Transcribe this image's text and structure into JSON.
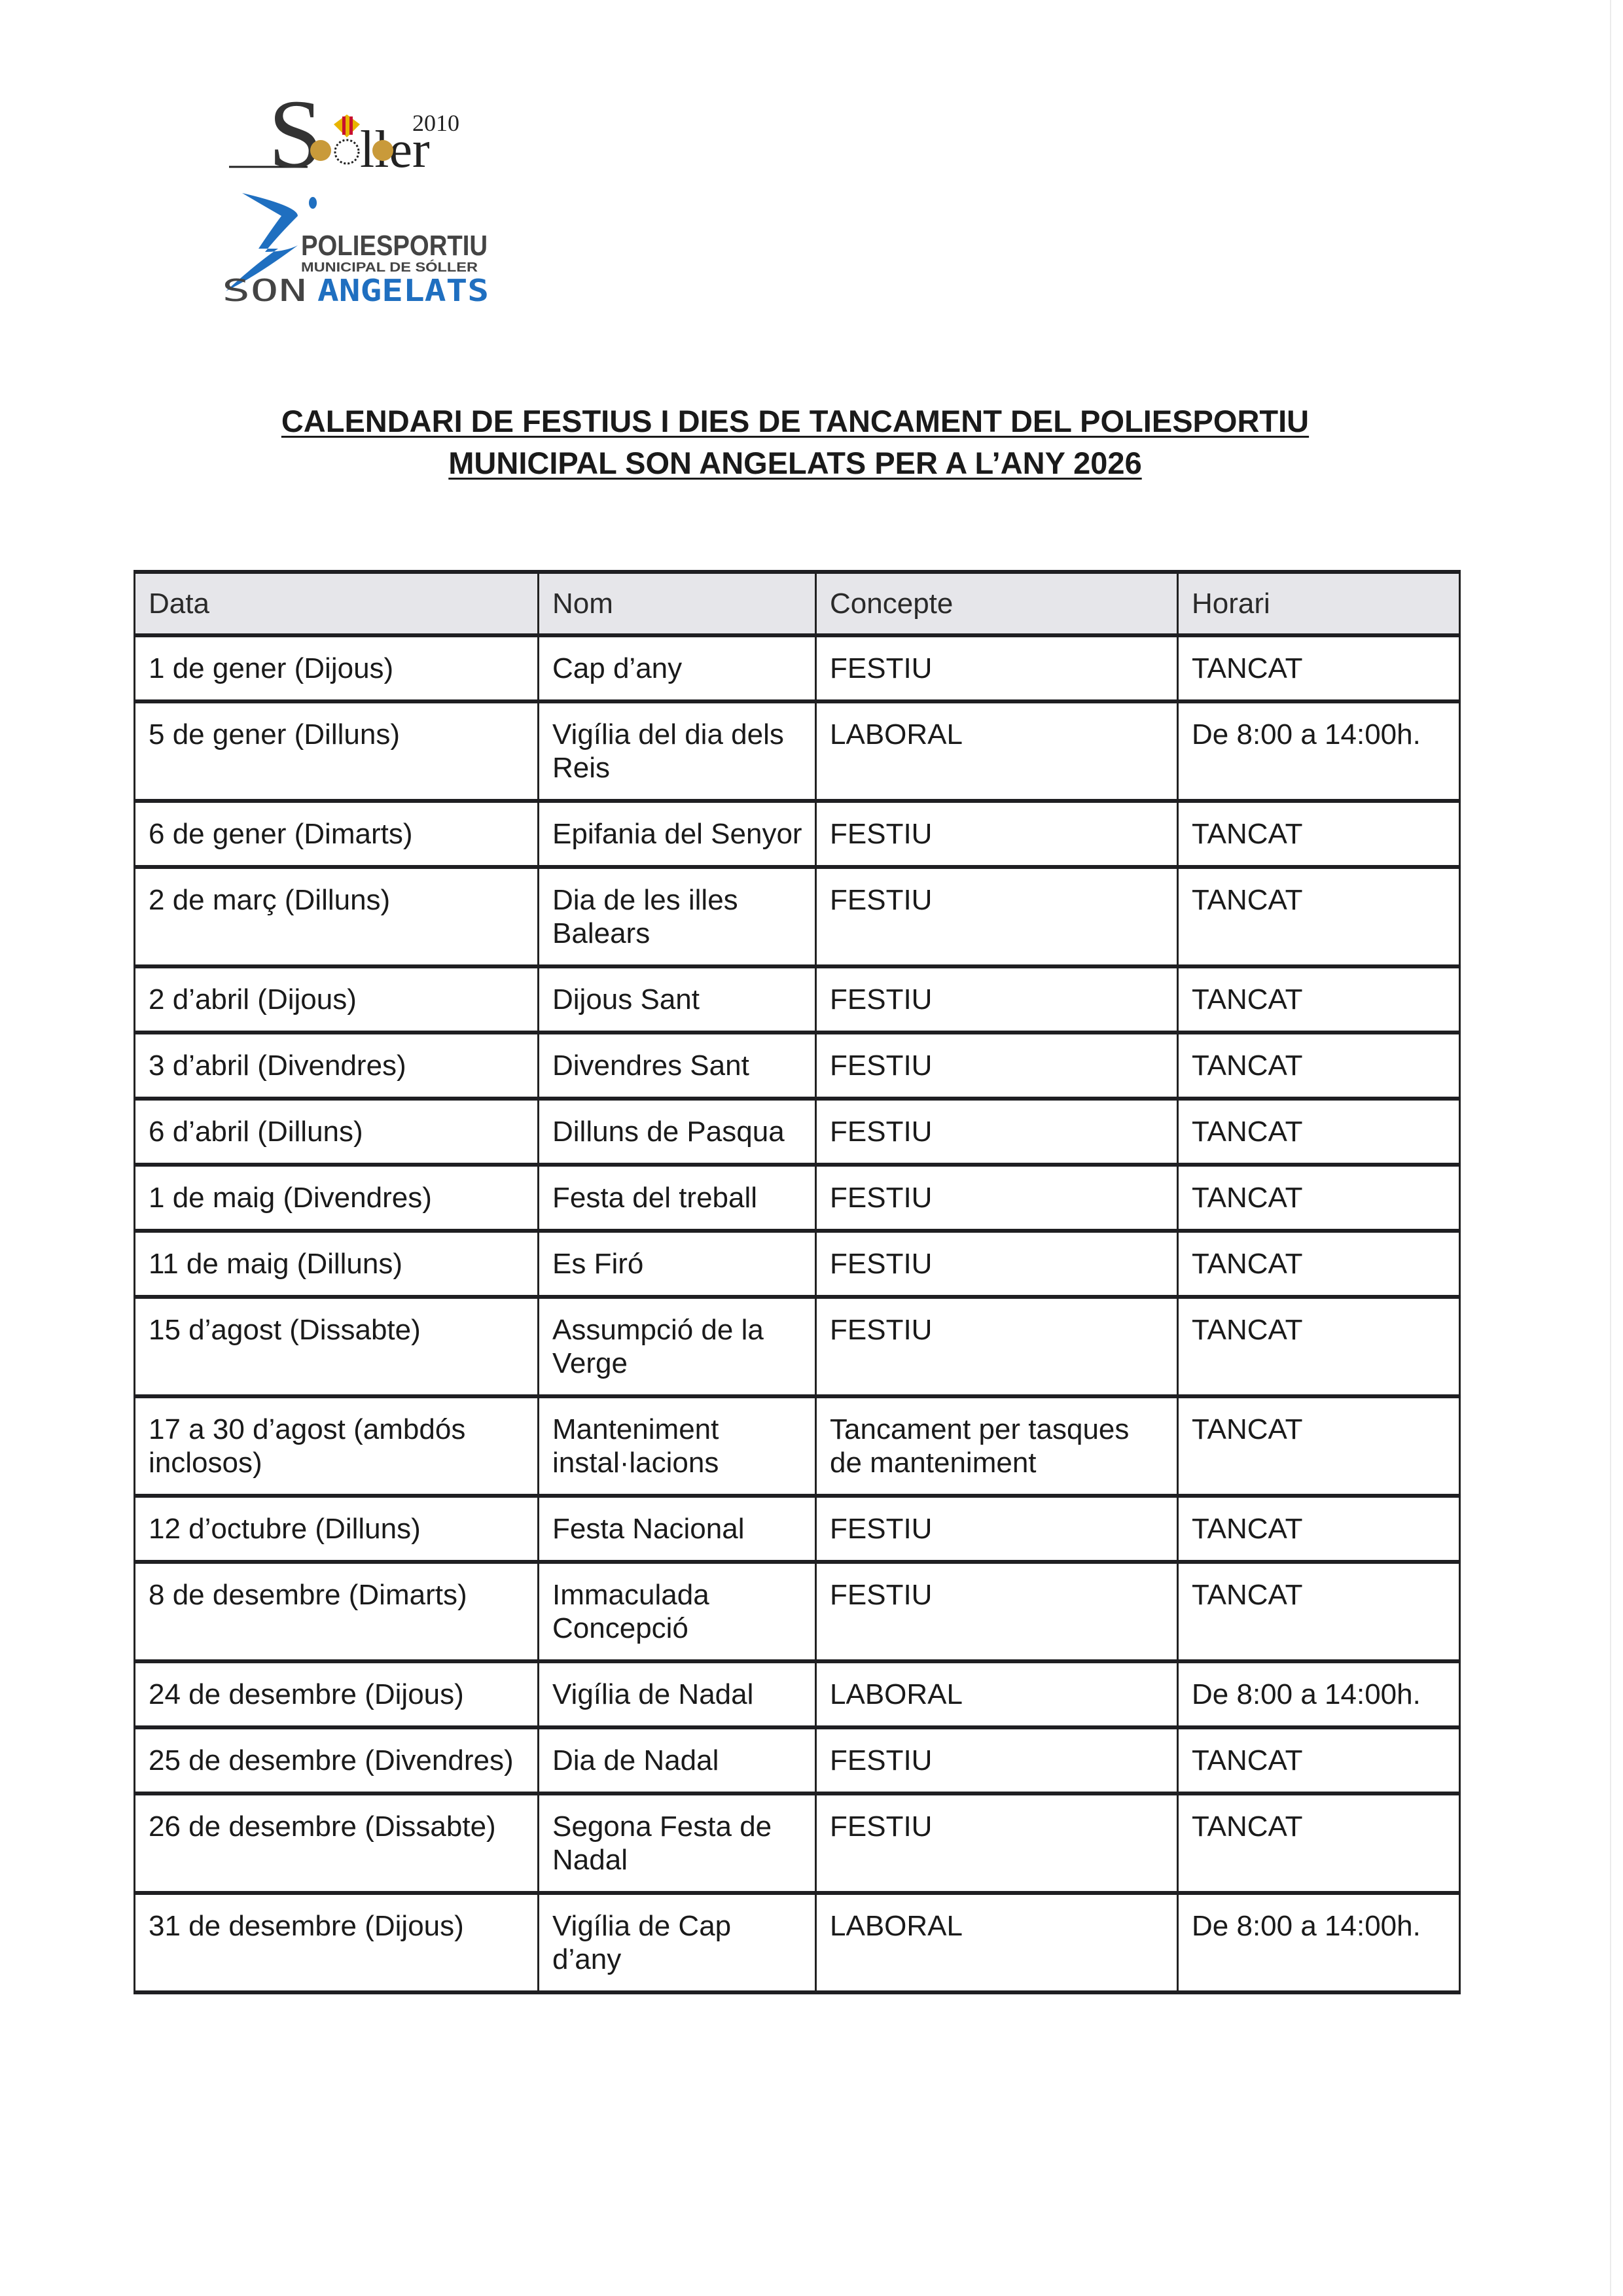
{
  "logos": {
    "soller": {
      "text": "Sóller",
      "year": "2010"
    },
    "poliesportiu": {
      "line1": "POLIESPORTIU",
      "line2": "MUNICIPAL DE SÓLLER",
      "line3a": "SON",
      "line3b": "ANGELATS",
      "color": "#1f6fc0"
    }
  },
  "title": {
    "line1": "CALENDARI DE FESTIUS I DIES DE TANCAMENT DEL POLIESPORTIU",
    "line2": "MUNICIPAL SON ANGELATS PER A L’ANY 2026"
  },
  "table": {
    "headers": [
      "Data",
      "Nom",
      "Concepte",
      "Horari"
    ],
    "rows": [
      [
        "1 de gener (Dijous)",
        "Cap d’any",
        "FESTIU",
        "TANCAT"
      ],
      [
        "5 de gener (Dilluns)",
        "Vigília del dia dels Reis",
        "LABORAL",
        "De 8:00 a 14:00h."
      ],
      [
        "6 de gener (Dimarts)",
        "Epifania del Senyor",
        "FESTIU",
        "TANCAT"
      ],
      [
        "2 de març (Dilluns)",
        "Dia de les illes Balears",
        "FESTIU",
        "TANCAT"
      ],
      [
        "2 d’abril (Dijous)",
        "Dijous Sant",
        "FESTIU",
        "TANCAT"
      ],
      [
        "3 d’abril (Divendres)",
        "Divendres Sant",
        "FESTIU",
        "TANCAT"
      ],
      [
        "6 d’abril (Dilluns)",
        "Dilluns de Pasqua",
        "FESTIU",
        "TANCAT"
      ],
      [
        "1 de maig (Divendres)",
        "Festa del treball",
        "FESTIU",
        "TANCAT"
      ],
      [
        "11 de maig (Dilluns)",
        "Es Firó",
        "FESTIU",
        "TANCAT"
      ],
      [
        "15 d’agost (Dissabte)",
        "Assumpció de la Verge",
        "FESTIU",
        "TANCAT"
      ],
      [
        "17 a 30 d’agost (ambdós inclosos)",
        "Manteniment instal·lacions",
        "Tancament per tasques de manteniment",
        "TANCAT"
      ],
      [
        "12 d’octubre (Dilluns)",
        "Festa Nacional",
        "FESTIU",
        "TANCAT"
      ],
      [
        "8 de desembre (Dimarts)",
        "Immaculada Concepció",
        "FESTIU",
        "TANCAT"
      ],
      [
        "24 de desembre (Dijous)",
        "Vigília de Nadal",
        "LABORAL",
        "De 8:00 a 14:00h."
      ],
      [
        "25 de desembre (Divendres)",
        "Dia de Nadal",
        "FESTIU",
        "TANCAT"
      ],
      [
        "26 de desembre (Dissabte)",
        "Segona Festa de Nadal",
        "FESTIU",
        "TANCAT"
      ],
      [
        "31 de desembre (Dijous)",
        "Vigília de Cap d’any",
        "LABORAL",
        "De 8:00 a 14:00h."
      ]
    ]
  }
}
